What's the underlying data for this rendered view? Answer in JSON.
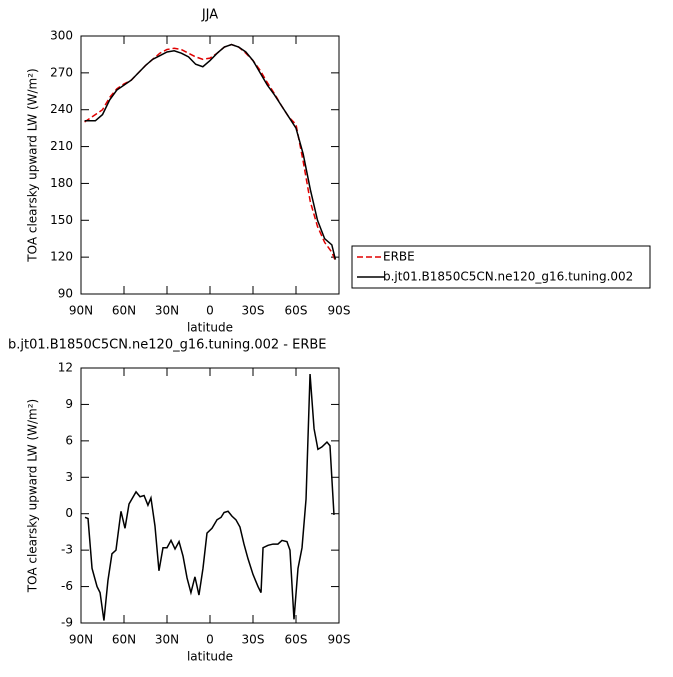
{
  "chart_data": [
    {
      "type": "line",
      "title": "JJA",
      "x_label": "latitude",
      "y_label": "TOA clearsky upward LW (W/m²)",
      "x": [
        87.5,
        85,
        80,
        75,
        70,
        65,
        60,
        55,
        50,
        45,
        40,
        35,
        30,
        25,
        20,
        15,
        10,
        5,
        0,
        -5,
        -10,
        -15,
        -20,
        -25,
        -30,
        -35,
        -40,
        -45,
        -50,
        -55,
        -60,
        -65,
        -70,
        -75,
        -80,
        -85,
        -87.5
      ],
      "series": [
        {
          "name": "ERBE",
          "color": "#e00000",
          "dash": true,
          "values": [
            230,
            232,
            236,
            240,
            250,
            257,
            261,
            264,
            270,
            276,
            281,
            286,
            289,
            290,
            289,
            286,
            283,
            281,
            282,
            286,
            291,
            293,
            291,
            286,
            280,
            272,
            262,
            253,
            243,
            234,
            228,
            198,
            165,
            145,
            132,
            124,
            117
          ]
        },
        {
          "name": "b.jt01.B1850C5CN.ne120_g16.tuning.002",
          "color": "#000000",
          "dash": false,
          "values": [
            231,
            231,
            231,
            236,
            248,
            256,
            260,
            264,
            270,
            276,
            281,
            284,
            287,
            288,
            286,
            283,
            277,
            275,
            280,
            286,
            291,
            293,
            291,
            287,
            280,
            270,
            260,
            252,
            243,
            234,
            225,
            204,
            175,
            150,
            135,
            130,
            118
          ]
        }
      ],
      "xlim": [
        90,
        -90
      ],
      "xticks": [
        {
          "value": 90,
          "label": "90N"
        },
        {
          "value": 60,
          "label": "60N"
        },
        {
          "value": 30,
          "label": "30N"
        },
        0,
        {
          "value": -30,
          "label": "30S"
        },
        {
          "value": -60,
          "label": "60S"
        },
        {
          "value": -90,
          "label": "90S"
        }
      ],
      "ylim": [
        90,
        300
      ],
      "yticks": [
        90,
        120,
        150,
        180,
        210,
        240,
        270,
        300
      ],
      "legend": "right"
    },
    {
      "type": "line",
      "title": "b.jt01.B1850C5CN.ne120_g16.tuning.002 - ERBE",
      "x_label": "latitude",
      "y_label": "TOA clearsky upward LW (W/m²)",
      "x": [
        87.2,
        85.1,
        82.3,
        78.8,
        76.7,
        74.0,
        71.2,
        68.4,
        65.6,
        62.1,
        59.3,
        56.5,
        51.6,
        48.8,
        46.0,
        43.3,
        41.2,
        38.4,
        35.6,
        32.8,
        30.0,
        27.2,
        24.4,
        21.6,
        18.8,
        16.0,
        13.3,
        10.5,
        7.7,
        4.9,
        2.1,
        -1.4,
        -4.9,
        -7.7,
        -9.8,
        -12.6,
        -15.3,
        -18.1,
        -20.9,
        -23.7,
        -26.5,
        -30.0,
        -33.5,
        -35.6,
        -37.0,
        -40.5,
        -44.0,
        -47.4,
        -50.2,
        -53.7,
        -55.8,
        -58.6,
        -61.4,
        -64.2,
        -67.0,
        -69.8,
        -72.6,
        -75.3,
        -78.1,
        -81.6,
        -83.7,
        -86.5
      ],
      "values": [
        -0.3,
        -0.4,
        -4.5,
        -6,
        -6.5,
        -8.8,
        -5.5,
        -3.3,
        -3,
        0.2,
        -1.2,
        0.8,
        1.8,
        1.4,
        1.5,
        0.7,
        1.3,
        -1,
        -4.7,
        -2.8,
        -2.8,
        -2.2,
        -2.9,
        -2.3,
        -3.5,
        -5.3,
        -6.5,
        -5.2,
        -6.7,
        -4.5,
        -1.6,
        -1.2,
        -0.5,
        -0.3,
        0.1,
        0.2,
        -0.2,
        -0.5,
        -1.1,
        -2.5,
        -3.7,
        -5,
        -6,
        -6.5,
        -2.8,
        -2.6,
        -2.5,
        -2.5,
        -2.2,
        -2.3,
        -3,
        -8.7,
        -4.5,
        -2.8,
        1.2,
        11.5,
        7,
        5.3,
        5.5,
        5.9,
        5.6,
        -0.1
      ],
      "color": "#000000",
      "xlim": [
        90,
        -90
      ],
      "xticks": [
        {
          "value": 90,
          "label": "90N"
        },
        {
          "value": 60,
          "label": "60N"
        },
        {
          "value": 30,
          "label": "30N"
        },
        0,
        {
          "value": -30,
          "label": "30S"
        },
        {
          "value": -60,
          "label": "60S"
        },
        {
          "value": -90,
          "label": "90S"
        }
      ],
      "ylim": [
        -9,
        12
      ],
      "yticks": [
        -9,
        -6,
        -3,
        0,
        3,
        6,
        9,
        12
      ]
    }
  ]
}
